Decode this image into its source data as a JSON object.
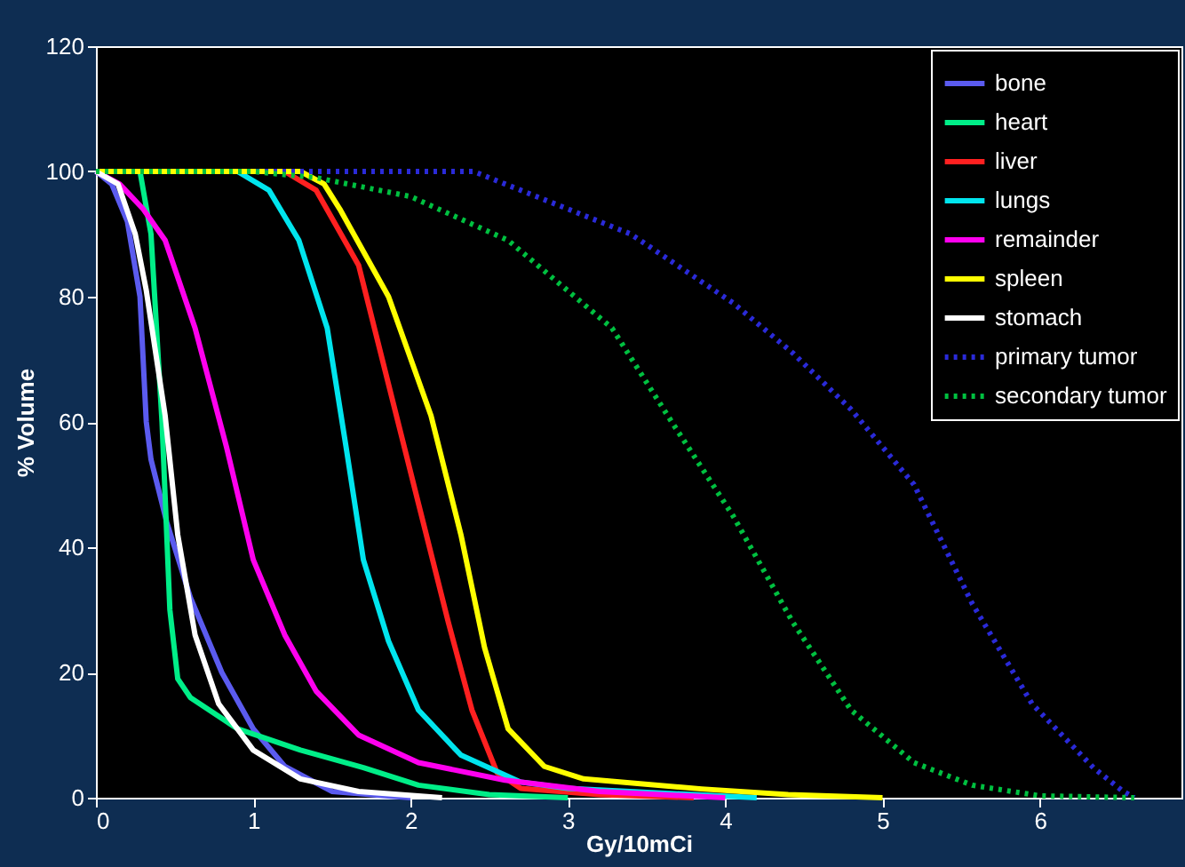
{
  "chart_data": {
    "type": "line",
    "xlabel": "Gy/10mCi",
    "ylabel": "% Volume",
    "xlim": [
      0,
      6.9
    ],
    "ylim": [
      0,
      120
    ],
    "xticks": [
      0,
      1,
      2,
      3,
      4,
      5,
      6
    ],
    "yticks": [
      0,
      20,
      40,
      60,
      80,
      100,
      120
    ],
    "grid": false,
    "legend": "top right",
    "series": [
      {
        "name": "bone",
        "color": "#5b5bef",
        "line_style": "solid",
        "x": [
          0,
          0.1,
          0.2,
          0.28,
          0.32,
          0.35,
          0.45,
          0.6,
          0.8,
          1.0,
          1.2,
          1.5,
          2
        ],
        "values": [
          100,
          98,
          92,
          80,
          60,
          54,
          44,
          32,
          20,
          11,
          5,
          1,
          0
        ]
      },
      {
        "name": "heart",
        "color": "#00ee88",
        "line_style": "solid",
        "x": [
          0,
          0.28,
          0.35,
          0.42,
          0.47,
          0.52,
          0.6,
          0.9,
          1.3,
          1.7,
          2.05,
          2.5,
          3
        ],
        "values": [
          100,
          100,
          90,
          60,
          30,
          19,
          16,
          11,
          7.6,
          4.8,
          2,
          0.5,
          0
        ]
      },
      {
        "name": "liver",
        "color": "#ff2020",
        "line_style": "solid",
        "x": [
          0,
          1.2,
          1.4,
          1.67,
          1.86,
          2.05,
          2.24,
          2.39,
          2.55,
          2.7,
          3.2,
          3.8
        ],
        "values": [
          100,
          100,
          97,
          85,
          66,
          47,
          28,
          14,
          4,
          1.5,
          0.5,
          0
        ]
      },
      {
        "name": "lungs",
        "color": "#00e5ee",
        "line_style": "solid",
        "x": [
          0,
          0.9,
          1.1,
          1.29,
          1.47,
          1.59,
          1.7,
          1.86,
          2.05,
          2.32,
          2.7,
          3.0,
          4.2
        ],
        "values": [
          100,
          100,
          97,
          89,
          75,
          56,
          38,
          25,
          14,
          6.8,
          2.5,
          1.5,
          0
        ]
      },
      {
        "name": "remainder",
        "color": "#ff00ee",
        "line_style": "solid",
        "x": [
          0,
          0.15,
          0.3,
          0.44,
          0.63,
          0.83,
          1.0,
          1.2,
          1.4,
          1.67,
          2.05,
          2.6,
          3.2,
          4
        ],
        "values": [
          100,
          98,
          94,
          89,
          75,
          56,
          38,
          26,
          17,
          10,
          5.6,
          2.8,
          1,
          0
        ]
      },
      {
        "name": "spleen",
        "color": "#ffff00",
        "line_style": "solid",
        "x": [
          0,
          1.3,
          1.45,
          1.55,
          1.86,
          2.13,
          2.32,
          2.47,
          2.62,
          2.85,
          3.1,
          3.85,
          4.4,
          5
        ],
        "values": [
          100,
          100,
          98,
          94,
          80,
          61,
          42,
          24,
          11,
          5,
          3,
          1.4,
          0.5,
          0
        ]
      },
      {
        "name": "stomach",
        "color": "#ffffff",
        "line_style": "solid",
        "x": [
          0,
          0.14,
          0.25,
          0.32,
          0.44,
          0.52,
          0.63,
          0.78,
          1.0,
          1.3,
          1.67,
          2.2
        ],
        "values": [
          100,
          98,
          90,
          81,
          61,
          42,
          26,
          15,
          7.6,
          3,
          1,
          0
        ]
      },
      {
        "name": "primary tumor",
        "color": "#2a2ad8",
        "line_style": "dotted",
        "x": [
          0,
          2.4,
          2.7,
          3.0,
          3.4,
          4.05,
          4.43,
          4.8,
          5.2,
          5.57,
          5.95,
          6.34,
          6.53,
          6.6
        ],
        "values": [
          100,
          100,
          97,
          94,
          90,
          79,
          71,
          62,
          50,
          31,
          15,
          4.8,
          1,
          0
        ]
      },
      {
        "name": "secondary tumor",
        "color": "#00c040",
        "line_style": "dotted",
        "x": [
          0,
          1.0,
          1.4,
          2.0,
          2.62,
          3.28,
          3.66,
          4.05,
          4.43,
          4.8,
          5.2,
          5.57,
          6.0,
          6.6
        ],
        "values": [
          100,
          100,
          99,
          96,
          89,
          75,
          60,
          45,
          28,
          14,
          5.6,
          2,
          0.3,
          0
        ]
      }
    ]
  }
}
